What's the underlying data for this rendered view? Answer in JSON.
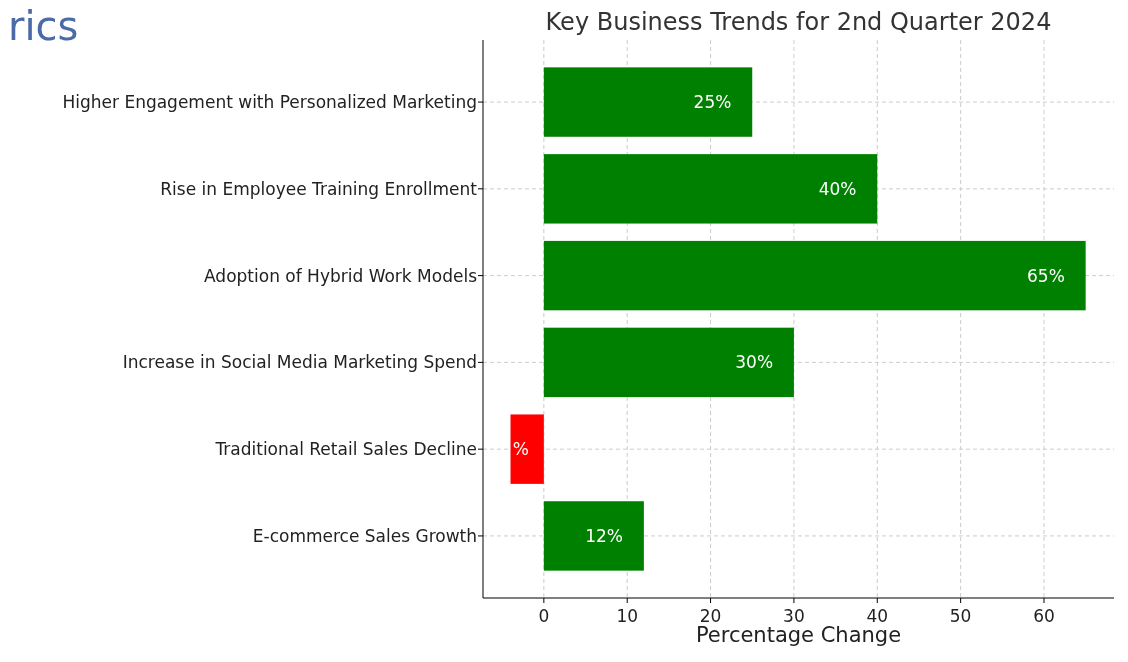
{
  "chart_data": {
    "type": "bar",
    "orientation": "horizontal",
    "title": "Key Business Trends for 2nd Quarter 2024",
    "xlabel": "Percentage Change",
    "annotations": [
      "rics"
    ],
    "categories": [
      "Higher Engagement with Personalized Marketing",
      "Rise in Employee Training Enrollment",
      "Adoption of Hybrid Work Models",
      "Increase in Social Media Marketing Spend",
      "Traditional Retail Sales Decline",
      "E-commerce Sales Growth"
    ],
    "values": [
      25,
      40,
      65,
      30,
      -4,
      12
    ],
    "colors": [
      "#008000",
      "#008000",
      "#008000",
      "#008000",
      "#ff0000",
      "#008000"
    ],
    "value_labels": [
      "25%",
      "40%",
      "65%",
      "30%",
      "%",
      "12%"
    ],
    "xlim": [
      -7.3,
      68.4
    ],
    "xticks": [
      0,
      10,
      20,
      30,
      40,
      50,
      60
    ],
    "grid": true
  }
}
